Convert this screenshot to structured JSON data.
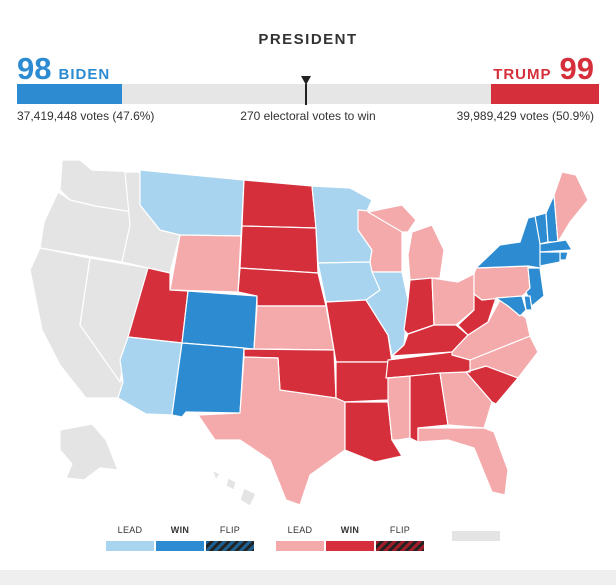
{
  "title": "PRESIDENT",
  "biden": {
    "ev": "98",
    "name": "BIDEN",
    "votes": "37,419,448 votes (47.6%)",
    "color": "#2c8bd1",
    "bar_fraction": 0.18
  },
  "trump": {
    "ev": "99",
    "name": "TRUMP",
    "votes": "39,989,429 votes (50.9%)",
    "color": "#d62f3c",
    "bar_fraction": 0.185
  },
  "threshold": "270 electoral votes to win",
  "colors": {
    "dem_lead": "#a8d4ef",
    "dem_win": "#2c8bd1",
    "rep_lead": "#f4a9ab",
    "rep_win": "#d62f3c",
    "uncalled": "#e4e4e4"
  },
  "states": [
    {
      "abbr": "WA",
      "status": "uncalled"
    },
    {
      "abbr": "OR",
      "status": "uncalled"
    },
    {
      "abbr": "CA",
      "status": "uncalled"
    },
    {
      "abbr": "NV",
      "status": "uncalled"
    },
    {
      "abbr": "ID",
      "status": "uncalled"
    },
    {
      "abbr": "MT",
      "status": "dem_lead"
    },
    {
      "abbr": "WY",
      "status": "rep_lead"
    },
    {
      "abbr": "UT",
      "status": "rep_win"
    },
    {
      "abbr": "AZ",
      "status": "dem_lead"
    },
    {
      "abbr": "CO",
      "status": "dem_win"
    },
    {
      "abbr": "NM",
      "status": "dem_win"
    },
    {
      "abbr": "ND",
      "status": "rep_win"
    },
    {
      "abbr": "SD",
      "status": "rep_win"
    },
    {
      "abbr": "NE",
      "status": "rep_win"
    },
    {
      "abbr": "KS",
      "status": "rep_lead"
    },
    {
      "abbr": "OK",
      "status": "rep_win"
    },
    {
      "abbr": "TX",
      "status": "rep_lead"
    },
    {
      "abbr": "MN",
      "status": "dem_lead"
    },
    {
      "abbr": "IA",
      "status": "dem_lead"
    },
    {
      "abbr": "MO",
      "status": "rep_win"
    },
    {
      "abbr": "AR",
      "status": "rep_win"
    },
    {
      "abbr": "LA",
      "status": "rep_win"
    },
    {
      "abbr": "WI",
      "status": "rep_lead"
    },
    {
      "abbr": "IL",
      "status": "dem_lead"
    },
    {
      "abbr": "MI",
      "status": "rep_lead"
    },
    {
      "abbr": "IN",
      "status": "rep_win"
    },
    {
      "abbr": "OH",
      "status": "rep_lead"
    },
    {
      "abbr": "KY",
      "status": "rep_win"
    },
    {
      "abbr": "TN",
      "status": "rep_win"
    },
    {
      "abbr": "MS",
      "status": "rep_lead"
    },
    {
      "abbr": "AL",
      "status": "rep_win"
    },
    {
      "abbr": "GA",
      "status": "rep_lead"
    },
    {
      "abbr": "FL",
      "status": "rep_lead"
    },
    {
      "abbr": "SC",
      "status": "rep_win"
    },
    {
      "abbr": "NC",
      "status": "rep_lead"
    },
    {
      "abbr": "VA",
      "status": "rep_lead"
    },
    {
      "abbr": "WV",
      "status": "rep_win"
    },
    {
      "abbr": "PA",
      "status": "rep_lead"
    },
    {
      "abbr": "NY",
      "status": "dem_win"
    },
    {
      "abbr": "VT",
      "status": "dem_win"
    },
    {
      "abbr": "NH",
      "status": "dem_win"
    },
    {
      "abbr": "ME",
      "status": "rep_lead"
    },
    {
      "abbr": "MA",
      "status": "dem_win"
    },
    {
      "abbr": "RI",
      "status": "dem_win"
    },
    {
      "abbr": "CT",
      "status": "dem_win"
    },
    {
      "abbr": "NJ",
      "status": "dem_win"
    },
    {
      "abbr": "DE",
      "status": "dem_win"
    },
    {
      "abbr": "MD",
      "status": "dem_win"
    },
    {
      "abbr": "AK",
      "status": "uncalled"
    },
    {
      "abbr": "HI",
      "status": "uncalled"
    }
  ],
  "legend": {
    "dem": [
      {
        "label": "LEAD",
        "key": "dem_lead"
      },
      {
        "label": "WIN",
        "key": "dem_win"
      },
      {
        "label": "FLIP",
        "key": "dem_flip"
      }
    ],
    "rep": [
      {
        "label": "LEAD",
        "key": "rep_lead"
      },
      {
        "label": "WIN",
        "key": "rep_win"
      },
      {
        "label": "FLIP",
        "key": "rep_flip"
      }
    ],
    "uncalled": {
      "label": "",
      "key": "uncalled"
    }
  }
}
